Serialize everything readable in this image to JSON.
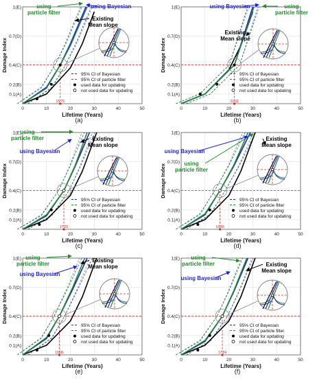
{
  "colors": {
    "bayes": "#1f1fe0",
    "pf": "#1e8c2a",
    "existing": "#000000",
    "ref": "#e02020"
  },
  "chart_data": [
    {
      "panel": "(a)",
      "type": "line",
      "xlabel": "Lifetime (Years)",
      "ylabel": "Damage Index",
      "xlim": [
        0,
        50
      ],
      "x_ticks": [
        0,
        10,
        20,
        30,
        40,
        50
      ],
      "y_ticks": [
        "0.1(A)",
        "0.2(B)",
        "0.4(C)",
        "0.7(D)",
        "1(E)"
      ],
      "ref_y_label": "0.4(C)",
      "ref_x_label": "15.75",
      "annotations": [
        "using particle filter",
        "using Bayesian",
        "Existing Mean slope"
      ],
      "legend": [
        "95% CI of Bayesian",
        "95% CI of particle filter",
        "used data for updating",
        "not used data for updating"
      ],
      "series": [
        {
          "name": "Existing Mean slope",
          "x": [
            0,
            10,
            20,
            25,
            30
          ],
          "y": [
            0,
            0.1,
            0.37,
            0.62,
            0.95
          ]
        },
        {
          "name": "using Bayesian",
          "x": [
            0,
            10,
            15.75,
            20,
            26.5
          ],
          "y": [
            0,
            0.17,
            0.4,
            0.62,
            1.0
          ]
        },
        {
          "name": "using particle filter",
          "x": [
            0,
            10,
            15.75,
            20,
            27
          ],
          "y": [
            0,
            0.16,
            0.4,
            0.6,
            1.0
          ]
        }
      ],
      "used_points": [
        {
          "x": 6,
          "y": 0.05
        },
        {
          "x": 12,
          "y": 0.2
        },
        {
          "x": 15.75,
          "y": 0.4
        }
      ],
      "unused_points": []
    },
    {
      "panel": "(b)",
      "type": "line",
      "xlabel": "Lifetime (Years)",
      "ylabel": "Damage Index",
      "xlim": [
        0,
        50
      ],
      "x_ticks": [
        0,
        10,
        20,
        30,
        40,
        50
      ],
      "y_ticks": [
        "0.1(A)",
        "0.2(B)",
        "0.4(C)",
        "0.7(D)",
        "1(E)"
      ],
      "ref_y_label": "0.4(C)",
      "ref_x_label": "22.31",
      "annotations": [
        "using Bayesian",
        "using particle filter",
        "Existing Mean slope"
      ],
      "legend": [
        "95% CI of Bayesian",
        "95% CI of particle filter",
        "used data for updating",
        "not used data for updating"
      ],
      "series": [
        {
          "name": "Existing Mean slope",
          "x": [
            0,
            10,
            20,
            25,
            30
          ],
          "y": [
            0,
            0.1,
            0.35,
            0.6,
            0.95
          ]
        },
        {
          "name": "using Bayesian",
          "x": [
            0,
            10,
            22.31,
            30
          ],
          "y": [
            0,
            0.1,
            0.4,
            1.0
          ]
        },
        {
          "name": "using particle filter",
          "x": [
            0,
            10,
            22.31,
            30.5
          ],
          "y": [
            0,
            0.1,
            0.4,
            1.0
          ]
        }
      ],
      "used_points": [
        {
          "x": 8,
          "y": 0.1
        },
        {
          "x": 15,
          "y": 0.2
        },
        {
          "x": 22.31,
          "y": 0.4
        }
      ],
      "unused_points": []
    },
    {
      "panel": "(c)",
      "type": "line",
      "xlabel": "Lifetime (Years)",
      "ylabel": "Damage Index",
      "xlim": [
        0,
        50
      ],
      "x_ticks": [
        0,
        10,
        20,
        30,
        40,
        50
      ],
      "y_ticks": [
        "0.1(A)",
        "0.2(B)",
        "0.4(C)",
        "0.7(D)",
        "1(E)"
      ],
      "ref_y_label": "0.4(C)",
      "ref_x_label": "17.26",
      "annotations": [
        "using particle filter",
        "using Bayesian",
        "Existing Mean slope"
      ],
      "legend": [
        "95% CI of Bayesian",
        "95% CI of particle filter",
        "used data for updating",
        "not used data for updating"
      ],
      "series": [
        {
          "name": "Existing Mean slope",
          "x": [
            0,
            10,
            20,
            25,
            31
          ],
          "y": [
            0,
            0.1,
            0.35,
            0.6,
            1.0
          ]
        },
        {
          "name": "using Bayesian",
          "x": [
            0,
            10,
            17.26,
            22,
            28
          ],
          "y": [
            0,
            0.14,
            0.4,
            0.65,
            1.0
          ]
        },
        {
          "name": "using particle filter",
          "x": [
            0,
            10,
            17.26,
            22,
            27
          ],
          "y": [
            0,
            0.15,
            0.4,
            0.66,
            1.0
          ]
        }
      ],
      "used_points": [
        {
          "x": 7,
          "y": 0.05
        },
        {
          "x": 12,
          "y": 0.2
        }
      ],
      "unused_points": [
        {
          "x": 17.26,
          "y": 0.4
        }
      ]
    },
    {
      "panel": "(d)",
      "type": "line",
      "xlabel": "Lifetime (Years)",
      "ylabel": "Damage Index",
      "xlim": [
        0,
        50
      ],
      "x_ticks": [
        0,
        10,
        20,
        30,
        40,
        50
      ],
      "y_ticks": [
        "0.1(A)",
        "0.2(B)",
        "0.4(C)",
        "0.7(D)",
        "1(E)"
      ],
      "ref_y_label": "0.4(C)",
      "ref_x_label": "16.26",
      "annotations": [
        "using Bayesian",
        "using particle filter",
        "Existing Mean slope"
      ],
      "legend": [
        "95% CI of Bayesian",
        "95% CI of particle filter",
        "used data for updating",
        "not used data for updating"
      ],
      "series": [
        {
          "name": "Existing Mean slope",
          "x": [
            0,
            10,
            20,
            25,
            31
          ],
          "y": [
            0,
            0.1,
            0.35,
            0.6,
            1.0
          ]
        },
        {
          "name": "using Bayesian",
          "x": [
            0,
            10,
            16.26,
            22,
            29
          ],
          "y": [
            0,
            0.15,
            0.4,
            0.65,
            1.0
          ]
        },
        {
          "name": "using particle filter",
          "x": [
            0,
            10,
            16.26,
            22,
            28
          ],
          "y": [
            0,
            0.16,
            0.4,
            0.66,
            1.0
          ]
        }
      ],
      "used_points": [
        {
          "x": 7,
          "y": 0.05
        },
        {
          "x": 12,
          "y": 0.2
        }
      ],
      "unused_points": [
        {
          "x": 16.26,
          "y": 0.4
        }
      ]
    },
    {
      "panel": "(e)",
      "type": "line",
      "xlabel": "Lifetime (Years)",
      "ylabel": "Damage Index",
      "xlim": [
        0,
        50
      ],
      "x_ticks": [
        0,
        10,
        20,
        30,
        40,
        50
      ],
      "y_ticks": [
        "0.1(A)",
        "0.2(B)",
        "0.4(C)",
        "0.7(D)",
        "1(E)"
      ],
      "ref_y_label": "0.4(C)",
      "ref_x_label": "15.36",
      "annotations": [
        "using particle filter",
        "using Bayesian",
        "Existing Mean slope"
      ],
      "legend": [
        "95% CI of Bayesian",
        "95% CI of particle filter",
        "used data for updating",
        "not used data for updating"
      ],
      "series": [
        {
          "name": "Existing Mean slope",
          "x": [
            0,
            10,
            20,
            25,
            31
          ],
          "y": [
            0,
            0.1,
            0.35,
            0.6,
            1.0
          ]
        },
        {
          "name": "using Bayesian",
          "x": [
            0,
            10,
            15.36,
            21,
            27
          ],
          "y": [
            0,
            0.17,
            0.4,
            0.68,
            1.0
          ]
        },
        {
          "name": "using particle filter",
          "x": [
            0,
            10,
            15.36,
            21,
            26
          ],
          "y": [
            0,
            0.18,
            0.4,
            0.7,
            1.0
          ]
        }
      ],
      "used_points": [
        {
          "x": 6,
          "y": 0.05
        },
        {
          "x": 11,
          "y": 0.2
        }
      ],
      "unused_points": [
        {
          "x": 15.36,
          "y": 0.4
        }
      ]
    },
    {
      "panel": "(f)",
      "type": "line",
      "xlabel": "Lifetime (Years)",
      "ylabel": "Damage Index",
      "xlim": [
        0,
        50
      ],
      "x_ticks": [
        0,
        10,
        20,
        30,
        40,
        50
      ],
      "y_ticks": [
        "0.1(A)",
        "0.2(B)",
        "0.4(C)",
        "0.7(D)",
        "1(E)"
      ],
      "ref_y_label": "0.4(C)",
      "ref_x_label": "17.24",
      "annotations": [
        "using particle filter",
        "using Bayesian",
        "Existing Mean slope"
      ],
      "legend": [
        "95% CI of Bayesian",
        "95% CI of particle filter",
        "used data for updating",
        "not used data for updating"
      ],
      "series": [
        {
          "name": "Existing Mean slope",
          "x": [
            0,
            10,
            20,
            25,
            31
          ],
          "y": [
            0,
            0.1,
            0.35,
            0.6,
            1.0
          ]
        },
        {
          "name": "using Bayesian",
          "x": [
            0,
            10,
            17.24,
            22,
            28
          ],
          "y": [
            0,
            0.14,
            0.4,
            0.65,
            1.0
          ]
        },
        {
          "name": "using particle filter",
          "x": [
            0,
            10,
            17.24,
            22,
            27.5
          ],
          "y": [
            0,
            0.15,
            0.4,
            0.66,
            1.0
          ]
        }
      ],
      "used_points": [
        {
          "x": 7,
          "y": 0.05
        },
        {
          "x": 12,
          "y": 0.2
        }
      ],
      "unused_points": [
        {
          "x": 17.24,
          "y": 0.4
        }
      ]
    }
  ]
}
